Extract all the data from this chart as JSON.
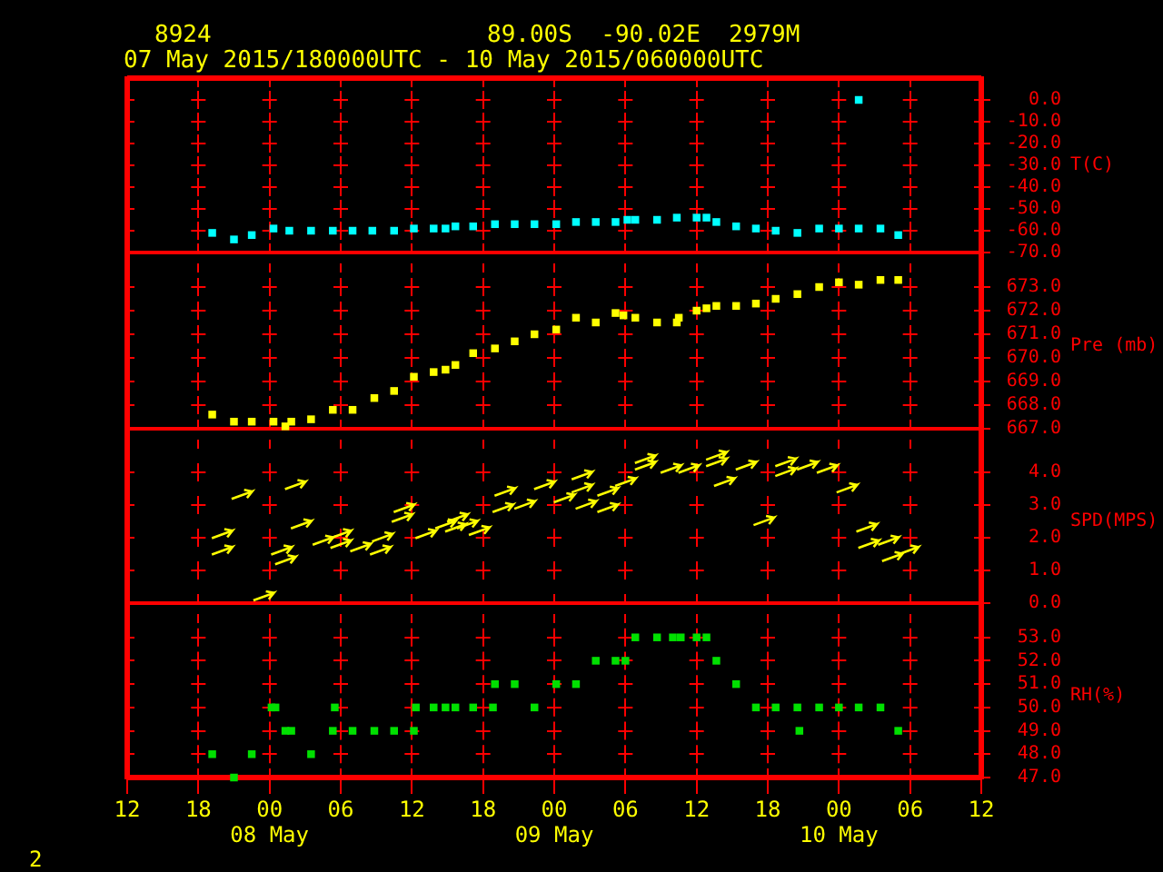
{
  "chart_data": [
    {
      "type": "scatter",
      "title": "8924",
      "subtitle": "07 May 2015/180000UTC - 10 May 2015/060000UTC",
      "annotations": [
        "89.00S  -90.02E  2979M"
      ],
      "ylabel": "T(C)",
      "color": "#00ffff",
      "marker": "square",
      "grid": true,
      "tick_labels": "y",
      "x": [
        "2015-05-07T19:10",
        "2015-05-07T21:00",
        "2015-05-07T22:30",
        "2015-05-08T00:20",
        "2015-05-08T01:40",
        "2015-05-08T03:30",
        "2015-05-08T05:20",
        "2015-05-08T07:00",
        "2015-05-08T08:40",
        "2015-05-08T10:30",
        "2015-05-08T12:10",
        "2015-05-08T13:50",
        "2015-05-08T14:50",
        "2015-05-08T15:40",
        "2015-05-08T17:10",
        "2015-05-08T19:00",
        "2015-05-08T20:40",
        "2015-05-08T22:20",
        "2015-05-09T00:10",
        "2015-05-09T01:50",
        "2015-05-09T03:30",
        "2015-05-09T05:10",
        "2015-05-09T06:10",
        "2015-05-09T06:50",
        "2015-05-09T08:40",
        "2015-05-09T10:20",
        "2015-05-09T12:00",
        "2015-05-09T12:50",
        "2015-05-09T13:40",
        "2015-05-09T15:20",
        "2015-05-09T17:00",
        "2015-05-09T18:40",
        "2015-05-09T20:30",
        "2015-05-09T22:20",
        "2015-05-10T00:00",
        "2015-05-10T01:40",
        "2015-05-10T01:40",
        "2015-05-10T03:30",
        "2015-05-10T05:00"
      ],
      "values": [
        -61,
        -64,
        -62,
        -59,
        -60,
        -60,
        -60,
        -60,
        -60,
        -60,
        -59,
        -59,
        -59,
        -58,
        -58,
        -57,
        -57,
        -57,
        -57,
        -56,
        -56,
        -56,
        -55,
        -55,
        -55,
        -54,
        -54,
        -54,
        -56,
        -58,
        -59,
        -60,
        -61,
        -59,
        -59,
        0,
        -59,
        -59,
        -62
      ],
      "xlim": [
        "2015-05-07T12:00",
        "2015-05-10T12:00"
      ],
      "xticks": [
        {
          "value": "2015-05-07T12:00",
          "label": null
        },
        {
          "value": "2015-05-07T18:00",
          "label": null
        },
        {
          "value": "2015-05-08T00:00",
          "label": null
        },
        {
          "value": "2015-05-08T06:00",
          "label": null
        },
        {
          "value": "2015-05-08T12:00",
          "label": null
        },
        {
          "value": "2015-05-08T18:00",
          "label": null
        },
        {
          "value": "2015-05-09T00:00",
          "label": null
        },
        {
          "value": "2015-05-09T06:00",
          "label": null
        },
        {
          "value": "2015-05-09T12:00",
          "label": null
        },
        {
          "value": "2015-05-09T18:00",
          "label": null
        },
        {
          "value": "2015-05-10T00:00",
          "label": null
        },
        {
          "value": "2015-05-10T06:00",
          "label": null
        },
        {
          "value": "2015-05-10T12:00",
          "label": null
        }
      ],
      "ylim": [
        -70,
        10
      ],
      "yticks": [
        {
          "value": -70,
          "label": "-70.0"
        },
        {
          "value": -60,
          "label": "-60.0"
        },
        {
          "value": -50,
          "label": "-50.0"
        },
        {
          "value": -40,
          "label": "-40.0"
        },
        {
          "value": -30,
          "label": "-30.0"
        },
        {
          "value": -20,
          "label": "-20.0"
        },
        {
          "value": -10,
          "label": "-10.0"
        },
        {
          "value": 0,
          "label": "0.0"
        }
      ]
    },
    {
      "type": "scatter",
      "ylabel": "Pre (mb)",
      "color": "#ffff00",
      "marker": "square",
      "grid": true,
      "tick_labels": "y",
      "x": [
        "2015-05-07T19:10",
        "2015-05-07T21:00",
        "2015-05-07T22:30",
        "2015-05-08T00:20",
        "2015-05-08T01:20",
        "2015-05-08T01:50",
        "2015-05-08T03:30",
        "2015-05-08T05:20",
        "2015-05-08T07:00",
        "2015-05-08T08:50",
        "2015-05-08T10:30",
        "2015-05-08T12:10",
        "2015-05-08T13:50",
        "2015-05-08T14:50",
        "2015-05-08T15:40",
        "2015-05-08T17:10",
        "2015-05-08T19:00",
        "2015-05-08T20:40",
        "2015-05-08T22:20",
        "2015-05-09T00:10",
        "2015-05-09T01:50",
        "2015-05-09T03:30",
        "2015-05-09T05:10",
        "2015-05-09T05:50",
        "2015-05-09T06:50",
        "2015-05-09T08:40",
        "2015-05-09T10:20",
        "2015-05-09T10:30",
        "2015-05-09T12:00",
        "2015-05-09T12:50",
        "2015-05-09T13:40",
        "2015-05-09T15:20",
        "2015-05-09T17:00",
        "2015-05-09T18:40",
        "2015-05-09T20:30",
        "2015-05-09T22:20",
        "2015-05-10T00:00",
        "2015-05-10T01:40",
        "2015-05-10T03:30",
        "2015-05-10T05:00"
      ],
      "values": [
        667.6,
        667.3,
        667.3,
        667.3,
        667.1,
        667.3,
        667.4,
        667.8,
        667.8,
        668.3,
        668.6,
        669.2,
        669.4,
        669.5,
        669.7,
        670.2,
        670.4,
        670.7,
        671.0,
        671.2,
        671.7,
        671.5,
        671.9,
        671.8,
        671.7,
        671.5,
        671.5,
        671.7,
        672.0,
        672.1,
        672.2,
        672.2,
        672.3,
        672.5,
        672.7,
        673.0,
        673.2,
        673.1,
        673.3,
        673.3
      ],
      "xlim": [
        "2015-05-07T12:00",
        "2015-05-10T12:00"
      ],
      "xticks": [
        {
          "value": "2015-05-07T12:00",
          "label": null
        },
        {
          "value": "2015-05-07T18:00",
          "label": null
        },
        {
          "value": "2015-05-08T00:00",
          "label": null
        },
        {
          "value": "2015-05-08T06:00",
          "label": null
        },
        {
          "value": "2015-05-08T12:00",
          "label": null
        },
        {
          "value": "2015-05-08T18:00",
          "label": null
        },
        {
          "value": "2015-05-09T00:00",
          "label": null
        },
        {
          "value": "2015-05-09T06:00",
          "label": null
        },
        {
          "value": "2015-05-09T12:00",
          "label": null
        },
        {
          "value": "2015-05-09T18:00",
          "label": null
        },
        {
          "value": "2015-05-10T00:00",
          "label": null
        },
        {
          "value": "2015-05-10T06:00",
          "label": null
        },
        {
          "value": "2015-05-10T12:00",
          "label": null
        }
      ],
      "ylim": [
        667,
        674
      ],
      "yticks": [
        {
          "value": 667,
          "label": "667.0"
        },
        {
          "value": 668,
          "label": "668.0"
        },
        {
          "value": 669,
          "label": "669.0"
        },
        {
          "value": 670,
          "label": "670.0"
        },
        {
          "value": 671,
          "label": "671.0"
        },
        {
          "value": 672,
          "label": "672.0"
        },
        {
          "value": 673,
          "label": "673.0"
        }
      ]
    },
    {
      "type": "scatter",
      "ylabel": "SPD(MPS)",
      "color": "#ffff00",
      "grid": true,
      "tick_labels": "y",
      "x": [
        "2015-05-07T20:00",
        "2015-05-07T20:00",
        "2015-05-07T21:40",
        "2015-05-07T23:30",
        "2015-05-08T01:00",
        "2015-05-08T01:20",
        "2015-05-08T02:10",
        "2015-05-08T02:40",
        "2015-05-08T04:30",
        "2015-05-08T06:00",
        "2015-05-08T06:00",
        "2015-05-08T07:40",
        "2015-05-08T09:30",
        "2015-05-08T09:20",
        "2015-05-08T11:20",
        "2015-05-08T11:10",
        "2015-05-08T13:10",
        "2015-05-08T14:50",
        "2015-05-08T15:50",
        "2015-05-08T15:40",
        "2015-05-08T16:40",
        "2015-05-08T17:40",
        "2015-05-08T19:40",
        "2015-05-08T19:50",
        "2015-05-08T21:30",
        "2015-05-08T23:10",
        "2015-05-09T00:50",
        "2015-05-09T02:20",
        "2015-05-09T02:20",
        "2015-05-09T02:40",
        "2015-05-09T04:30",
        "2015-05-09T04:30",
        "2015-05-09T06:00",
        "2015-05-09T07:40",
        "2015-05-09T07:40",
        "2015-05-09T09:50",
        "2015-05-09T11:20",
        "2015-05-09T13:40",
        "2015-05-09T13:40",
        "2015-05-09T14:20",
        "2015-05-09T16:10",
        "2015-05-09T17:40",
        "2015-05-09T19:30",
        "2015-05-09T19:30",
        "2015-05-09T21:20",
        "2015-05-09T23:00",
        "2015-05-10T00:40",
        "2015-05-10T02:20",
        "2015-05-10T02:30",
        "2015-05-10T04:10",
        "2015-05-10T04:30",
        "2015-05-10T05:50"
      ],
      "values": [
        1.6,
        2.1,
        3.3,
        0.2,
        1.6,
        1.3,
        3.6,
        2.4,
        1.9,
        2.1,
        1.8,
        1.7,
        2.0,
        1.6,
        2.9,
        2.6,
        2.1,
        2.4,
        2.6,
        2.3,
        2.4,
        2.2,
        2.9,
        3.4,
        3.0,
        3.6,
        3.2,
        3.9,
        3.5,
        3.0,
        3.4,
        2.9,
        3.7,
        4.4,
        4.2,
        4.1,
        4.1,
        4.5,
        4.3,
        3.7,
        4.2,
        2.5,
        4.3,
        4.0,
        4.2,
        4.1,
        3.5,
        2.3,
        1.8,
        1.9,
        1.4,
        1.6
      ],
      "xlim": [
        "2015-05-07T12:00",
        "2015-05-10T12:00"
      ],
      "xticks": [
        {
          "value": "2015-05-07T12:00",
          "label": null
        },
        {
          "value": "2015-05-07T18:00",
          "label": null
        },
        {
          "value": "2015-05-08T00:00",
          "label": null
        },
        {
          "value": "2015-05-08T06:00",
          "label": null
        },
        {
          "value": "2015-05-08T12:00",
          "label": null
        },
        {
          "value": "2015-05-08T18:00",
          "label": null
        },
        {
          "value": "2015-05-09T00:00",
          "label": null
        },
        {
          "value": "2015-05-09T06:00",
          "label": null
        },
        {
          "value": "2015-05-09T12:00",
          "label": null
        },
        {
          "value": "2015-05-09T18:00",
          "label": null
        },
        {
          "value": "2015-05-10T00:00",
          "label": null
        },
        {
          "value": "2015-05-10T06:00",
          "label": null
        },
        {
          "value": "2015-05-10T12:00",
          "label": null
        }
      ],
      "ylim": [
        0,
        5
      ],
      "yticks": [
        {
          "value": 0,
          "label": "0.0"
        },
        {
          "value": 1,
          "label": "1.0"
        },
        {
          "value": 2,
          "label": "2.0"
        },
        {
          "value": 3,
          "label": "3.0"
        },
        {
          "value": 4,
          "label": "4.0"
        }
      ]
    },
    {
      "type": "scatter",
      "ylabel": "RH(%)",
      "annotations": [
        "2"
      ],
      "color": "#00e000",
      "marker": "square",
      "grid": true,
      "x": [
        "2015-05-07T19:10",
        "2015-05-07T21:00",
        "2015-05-07T22:30",
        "2015-05-08T00:10",
        "2015-05-08T00:30",
        "2015-05-08T01:20",
        "2015-05-08T01:50",
        "2015-05-08T03:30",
        "2015-05-08T05:20",
        "2015-05-08T05:30",
        "2015-05-08T07:00",
        "2015-05-08T08:50",
        "2015-05-08T10:30",
        "2015-05-08T12:10",
        "2015-05-08T12:20",
        "2015-05-08T13:50",
        "2015-05-08T14:50",
        "2015-05-08T15:40",
        "2015-05-08T17:10",
        "2015-05-08T18:50",
        "2015-05-08T19:00",
        "2015-05-08T20:40",
        "2015-05-08T22:20",
        "2015-05-09T00:10",
        "2015-05-09T01:50",
        "2015-05-09T03:30",
        "2015-05-09T05:10",
        "2015-05-09T06:00",
        "2015-05-09T06:50",
        "2015-05-09T08:40",
        "2015-05-09T10:00",
        "2015-05-09T10:40",
        "2015-05-09T12:00",
        "2015-05-09T12:50",
        "2015-05-09T13:40",
        "2015-05-09T15:20",
        "2015-05-09T17:00",
        "2015-05-09T18:40",
        "2015-05-09T20:30",
        "2015-05-09T20:40",
        "2015-05-09T22:20",
        "2015-05-10T00:00",
        "2015-05-10T01:40",
        "2015-05-10T03:30",
        "2015-05-10T05:00"
      ],
      "values": [
        48,
        47,
        48,
        50,
        50,
        49,
        49,
        48,
        49,
        50,
        49,
        49,
        49,
        49,
        50,
        50,
        50,
        50,
        50,
        50,
        51,
        51,
        50,
        51,
        51,
        52,
        52,
        52,
        53,
        53,
        53,
        53,
        53,
        53,
        52,
        51,
        50,
        50,
        50,
        49,
        50,
        50,
        50,
        50,
        49
      ],
      "xlim": [
        "2015-05-07T12:00",
        "2015-05-10T12:00"
      ],
      "xticks": [
        {
          "value": "2015-05-07T12:00",
          "label": "12"
        },
        {
          "value": "2015-05-07T18:00",
          "label": "18"
        },
        {
          "value": "2015-05-08T00:00",
          "label": "00\n08 May"
        },
        {
          "value": "2015-05-08T06:00",
          "label": "06"
        },
        {
          "value": "2015-05-08T12:00",
          "label": "12"
        },
        {
          "value": "2015-05-08T18:00",
          "label": "18"
        },
        {
          "value": "2015-05-09T00:00",
          "label": "00\n09 May"
        },
        {
          "value": "2015-05-09T06:00",
          "label": "06"
        },
        {
          "value": "2015-05-09T12:00",
          "label": "12"
        },
        {
          "value": "2015-05-09T18:00",
          "label": "18"
        },
        {
          "value": "2015-05-10T00:00",
          "label": "00\n10 May"
        },
        {
          "value": "2015-05-10T06:00",
          "label": "06"
        },
        {
          "value": "2015-05-10T12:00",
          "label": "12"
        }
      ],
      "ylim": [
        47,
        54
      ],
      "yticks": [
        {
          "value": 47,
          "label": "47.0"
        },
        {
          "value": 48,
          "label": "48.0"
        },
        {
          "value": 49,
          "label": "49.0"
        },
        {
          "value": 50,
          "label": "50.0"
        },
        {
          "value": 51,
          "label": "51.0"
        },
        {
          "value": 52,
          "label": "52.0"
        },
        {
          "value": 53,
          "label": "53.0"
        }
      ]
    }
  ]
}
